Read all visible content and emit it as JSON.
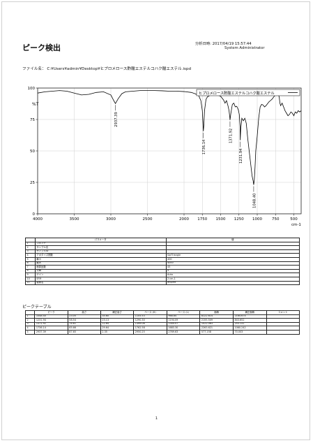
{
  "report": {
    "title": "ピーク検出",
    "analysis_date": "分析日時: 2017/04/19 15:57:44",
    "operator": "System Administrator",
    "file_label": "ファイル名：",
    "file_path": "C:¥Users¥admin¥Desktop¥ヒプロメロース酢酸エステルコハク酸エステル.ispd",
    "page_number": "1"
  },
  "chart_data": {
    "type": "line",
    "title": "",
    "xlabel": "cm-1",
    "ylabel": "%T",
    "xlim": [
      4000,
      400
    ],
    "ylim": [
      0,
      100
    ],
    "x_ticks": [
      "4000",
      "3500",
      "3000",
      "2500",
      "2000",
      "1750",
      "1500",
      "1250",
      "1000",
      "750",
      "500"
    ],
    "y_ticks": [
      "100",
      "75",
      "50",
      "25",
      "0"
    ],
    "grid": true,
    "legend": "top-right",
    "series": [
      {
        "name": "ヒプロメロース酢酸エステルコハク酸エステル",
        "color": "#000000",
        "points": [
          [
            4000,
            96
          ],
          [
            3900,
            97
          ],
          [
            3800,
            97.5
          ],
          [
            3700,
            98
          ],
          [
            3600,
            97.5
          ],
          [
            3500,
            96
          ],
          [
            3400,
            94.5
          ],
          [
            3300,
            95
          ],
          [
            3200,
            96.5
          ],
          [
            3100,
            97
          ],
          [
            3000,
            94.5
          ],
          [
            2960,
            90
          ],
          [
            2937.39,
            87.65
          ],
          [
            2900,
            91.5
          ],
          [
            2850,
            95.5
          ],
          [
            2800,
            97
          ],
          [
            2700,
            97.5
          ],
          [
            2600,
            98
          ],
          [
            2500,
            98
          ],
          [
            2400,
            98
          ],
          [
            2300,
            97.8
          ],
          [
            2200,
            97.5
          ],
          [
            2100,
            97.5
          ],
          [
            2000,
            97.2
          ],
          [
            1900,
            96.5
          ],
          [
            1850,
            95.5
          ],
          [
            1800,
            94
          ],
          [
            1770,
            90
          ],
          [
            1750,
            82
          ],
          [
            1740,
            70
          ],
          [
            1736.14,
            65.66
          ],
          [
            1730,
            70
          ],
          [
            1720,
            82
          ],
          [
            1700,
            91
          ],
          [
            1680,
            93
          ],
          [
            1650,
            94
          ],
          [
            1600,
            95
          ],
          [
            1550,
            94.5
          ],
          [
            1500,
            93.5
          ],
          [
            1460,
            90.5
          ],
          [
            1440,
            88
          ],
          [
            1420,
            90
          ],
          [
            1400,
            86
          ],
          [
            1385,
            82
          ],
          [
            1375,
            77
          ],
          [
            1371.92,
            74.61
          ],
          [
            1360,
            80
          ],
          [
            1340,
            87
          ],
          [
            1320,
            88
          ],
          [
            1300,
            85
          ],
          [
            1280,
            85.5
          ],
          [
            1260,
            83
          ],
          [
            1245,
            79
          ],
          [
            1235,
            70
          ],
          [
            1231.94,
            58.54
          ],
          [
            1225,
            68
          ],
          [
            1210,
            76
          ],
          [
            1190,
            74
          ],
          [
            1170,
            76
          ],
          [
            1150,
            72
          ],
          [
            1130,
            60
          ],
          [
            1110,
            50
          ],
          [
            1090,
            40
          ],
          [
            1070,
            30
          ],
          [
            1055,
            26
          ],
          [
            1048.4,
            23.05
          ],
          [
            1040,
            27
          ],
          [
            1030,
            37
          ],
          [
            1020,
            50
          ],
          [
            1000,
            62
          ],
          [
            980,
            76
          ],
          [
            960,
            85
          ],
          [
            940,
            87
          ],
          [
            920,
            86.5
          ],
          [
            900,
            85
          ],
          [
            880,
            86
          ],
          [
            860,
            87.5
          ],
          [
            840,
            89
          ],
          [
            820,
            90
          ],
          [
            800,
            91
          ],
          [
            780,
            92.5
          ],
          [
            760,
            94
          ],
          [
            740,
            95.5
          ],
          [
            720,
            96
          ],
          [
            700,
            93
          ],
          [
            690,
            88
          ],
          [
            680,
            86
          ],
          [
            660,
            88
          ],
          [
            640,
            85
          ],
          [
            620,
            82
          ],
          [
            600,
            80
          ],
          [
            580,
            78
          ],
          [
            560,
            79
          ],
          [
            540,
            81
          ],
          [
            520,
            80
          ],
          [
            500,
            78
          ],
          [
            480,
            81
          ],
          [
            460,
            80
          ],
          [
            440,
            82
          ],
          [
            420,
            81
          ],
          [
            400,
            82
          ]
        ]
      }
    ],
    "peak_labels": [
      {
        "x": 2937.39,
        "y": 87.65,
        "text": "2937.39"
      },
      {
        "x": 1736.14,
        "y": 65.66,
        "text": "1736.14"
      },
      {
        "x": 1371.92,
        "y": 74.61,
        "text": "1371.92"
      },
      {
        "x": 1231.94,
        "y": 58.54,
        "text": "1231.94"
      },
      {
        "x": 1048.4,
        "y": 23.05,
        "text": "1048.40"
      }
    ]
  },
  "parameters": {
    "headers": [
      "",
      "パラメータ",
      "値"
    ],
    "rows": [
      [
        "1",
        "コメント",
        ""
      ],
      [
        "2",
        "サンプル名",
        ""
      ],
      [
        "3",
        "サンプルID",
        ""
      ],
      [
        "4",
        "アポダイズ関数",
        "SqrTriangle"
      ],
      [
        "5",
        "最小",
        "400"
      ],
      [
        "6",
        "最大",
        "4000"
      ],
      [
        "7",
        "積算回数",
        "45"
      ],
      [
        "8",
        "分解",
        "4"
      ],
      [
        "9",
        "ゲイン",
        "Auto"
      ],
      [
        "10",
        "SFM",
        "2 cm-1"
      ],
      [
        "11",
        "装置名",
        "IRSpirit"
      ]
    ]
  },
  "peak_table": {
    "heading": "ピークテーブル",
    "headers": [
      "",
      "ピーク",
      "高さ",
      "補正高さ",
      "ベース (H)",
      "ベース (L)",
      "面積",
      "補正面積",
      "コメント"
    ],
    "rows": [
      [
        "1",
        "1048.40",
        "23.05",
        "35.60",
        "1105.53",
        "968.84",
        "8122.614",
        "2164.674",
        ""
      ],
      [
        "2",
        "1231.94",
        "58.54",
        "23.13",
        "1290.30",
        "1194.09",
        "2155.509",
        "843.652",
        ""
      ],
      [
        "3",
        "1371.92",
        "74.61",
        "12.64",
        "1399.06",
        "1344.07",
        "1022.063",
        "253.131",
        ""
      ],
      [
        "4",
        "1736.14",
        "65.66",
        "29.64",
        "1762.58",
        "1683.30",
        "2263.621",
        "1060.242",
        ""
      ],
      [
        "5",
        "2937.39",
        "87.65",
        "2.35",
        "2950.25",
        "2769.63",
        "577.158",
        "70.003",
        ""
      ]
    ]
  }
}
